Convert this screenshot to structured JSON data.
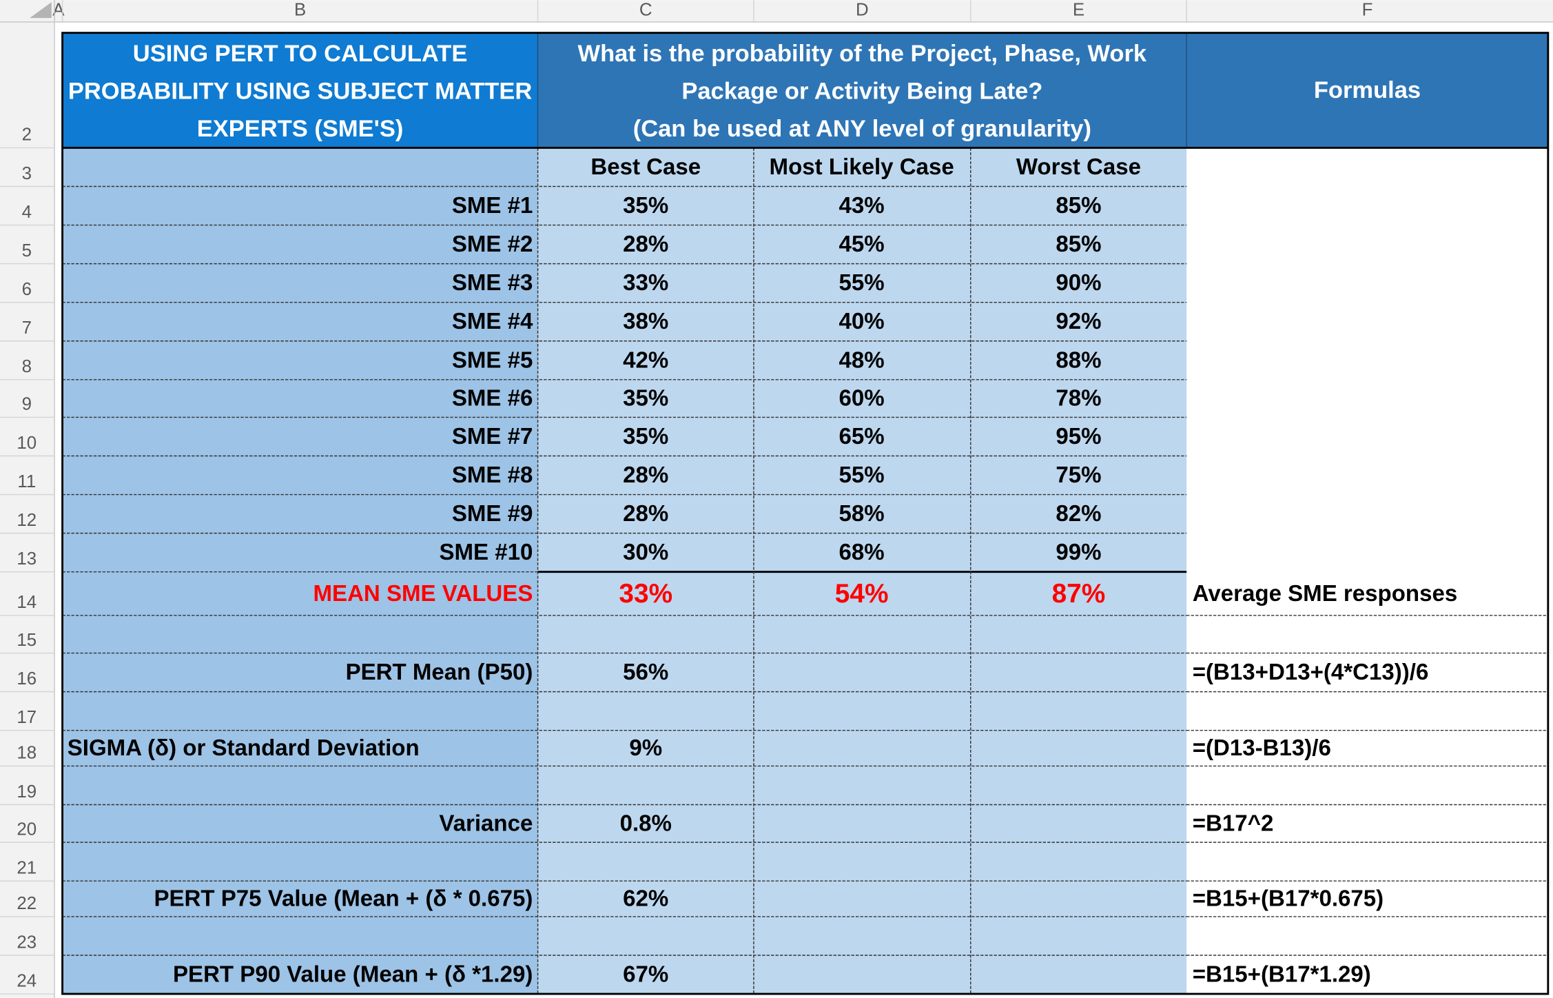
{
  "column_headers": [
    "A",
    "B",
    "C",
    "D",
    "E",
    "F"
  ],
  "row_numbers": [
    2,
    3,
    4,
    5,
    6,
    7,
    8,
    9,
    10,
    11,
    12,
    13,
    14,
    15,
    16,
    17,
    18,
    19,
    20,
    21,
    22,
    23,
    24
  ],
  "header": {
    "title_lines": [
      "USING PERT TO CALCULATE",
      "PROBABILITY USING SUBJECT MATTER",
      "EXPERTS (SME'S)"
    ],
    "question_lines": [
      "What is the probability of the Project, Phase, Work",
      "Package or Activity Being Late?",
      "(Can be used at ANY level of granularity)"
    ],
    "formulas": "Formulas"
  },
  "case_headers": [
    "Best Case",
    "Most Likely Case",
    "Worst Case"
  ],
  "sme_rows": [
    {
      "label": "SME #1",
      "values": [
        "35%",
        "43%",
        "85%"
      ]
    },
    {
      "label": "SME #2",
      "values": [
        "28%",
        "45%",
        "85%"
      ]
    },
    {
      "label": "SME #3",
      "values": [
        "33%",
        "55%",
        "90%"
      ]
    },
    {
      "label": "SME #4",
      "values": [
        "38%",
        "40%",
        "92%"
      ]
    },
    {
      "label": "SME #5",
      "values": [
        "42%",
        "48%",
        "88%"
      ]
    },
    {
      "label": "SME #6",
      "values": [
        "35%",
        "60%",
        "78%"
      ]
    },
    {
      "label": "SME #7",
      "values": [
        "35%",
        "65%",
        "95%"
      ]
    },
    {
      "label": "SME #8",
      "values": [
        "28%",
        "55%",
        "75%"
      ]
    },
    {
      "label": "SME #9",
      "values": [
        "28%",
        "58%",
        "82%"
      ]
    },
    {
      "label": "SME #10",
      "values": [
        "30%",
        "68%",
        "99%"
      ]
    }
  ],
  "mean_row": {
    "label": "MEAN SME VALUES",
    "values": [
      "33%",
      "54%",
      "87%"
    ],
    "formula": "Average SME responses"
  },
  "stats": [
    {
      "label": "PERT Mean (P50)",
      "value": "56%",
      "formula": "=(B13+D13+(4*C13))/6"
    },
    {
      "label": "SIGMA (δ) or Standard Deviation",
      "value": "9%",
      "formula": "=(D13-B13)/6"
    },
    {
      "label": "Variance",
      "value": "0.8%",
      "formula": "=B17^2"
    },
    {
      "label": "PERT P75 Value (Mean + (δ * 0.675)",
      "value": "62%",
      "formula": "=B15+(B17*0.675)"
    },
    {
      "label": "PERT P90 Value (Mean + (δ *1.29)",
      "value": "67%",
      "formula": "=B15+(B17*1.29)"
    }
  ]
}
